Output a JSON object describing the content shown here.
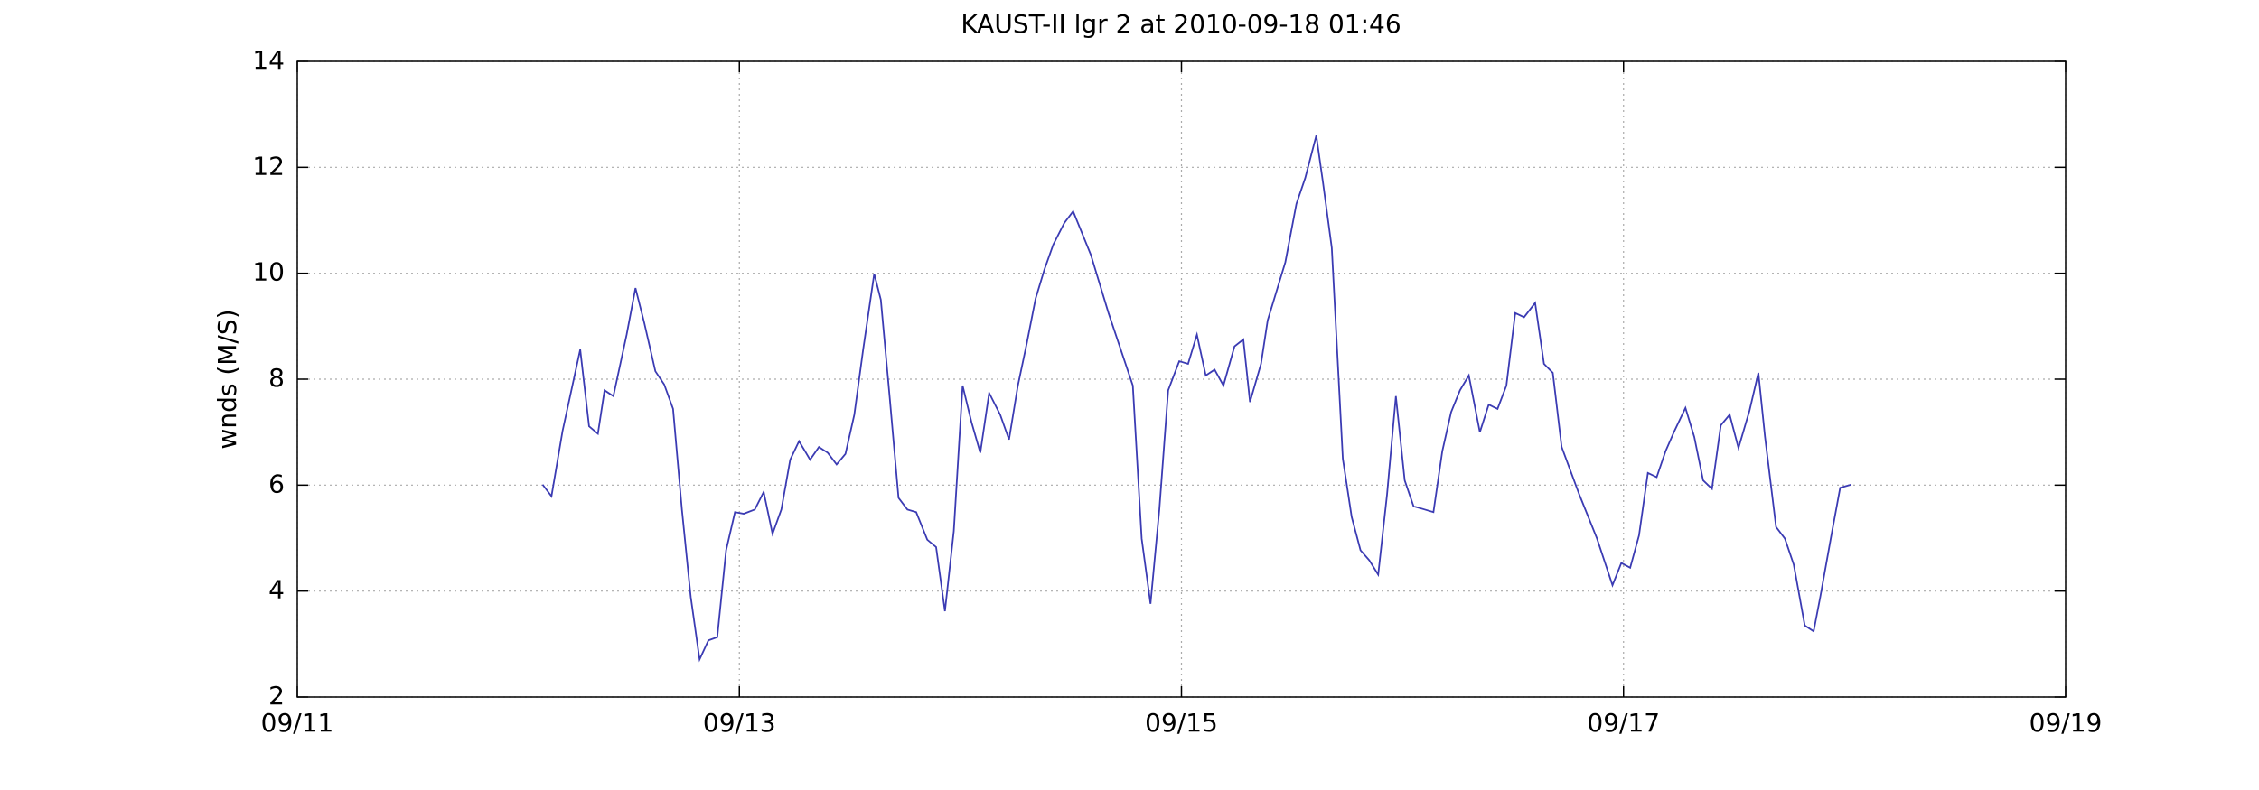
{
  "chart_data": {
    "type": "line",
    "title": "KAUST-II lgr 2 at 2010-09-18 01:46",
    "y_label": "wnds (M/S)",
    "xlim": [
      11,
      19
    ],
    "xticks": [
      {
        "value": 11,
        "label": "09/11"
      },
      {
        "value": 13,
        "label": "09/13"
      },
      {
        "value": 15,
        "label": "09/15"
      },
      {
        "value": 17,
        "label": "09/17"
      },
      {
        "value": 19,
        "label": "09/19"
      }
    ],
    "ylim": [
      2,
      14
    ],
    "yticks": [
      2,
      4,
      6,
      8,
      10,
      12,
      14
    ],
    "grid": true,
    "x": [
      12.11,
      12.15,
      12.2,
      12.28,
      12.32,
      12.36,
      12.39,
      12.43,
      12.49,
      12.53,
      12.57,
      12.62,
      12.66,
      12.7,
      12.74,
      12.78,
      12.82,
      12.86,
      12.9,
      12.94,
      12.98,
      13.02,
      13.07,
      13.11,
      13.15,
      13.19,
      13.23,
      13.27,
      13.32,
      13.36,
      13.4,
      13.44,
      13.48,
      13.52,
      13.56,
      13.61,
      13.64,
      13.68,
      13.72,
      13.76,
      13.8,
      13.85,
      13.89,
      13.93,
      13.97,
      14.01,
      14.05,
      14.09,
      14.13,
      14.18,
      14.22,
      14.26,
      14.3,
      14.34,
      14.38,
      14.42,
      14.47,
      14.51,
      14.59,
      14.67,
      14.78,
      14.82,
      14.86,
      14.9,
      14.94,
      14.99,
      15.03,
      15.07,
      15.11,
      15.15,
      15.19,
      15.24,
      15.28,
      15.31,
      15.36,
      15.39,
      15.43,
      15.47,
      15.52,
      15.56,
      15.61,
      15.64,
      15.68,
      15.73,
      15.77,
      15.81,
      15.85,
      15.89,
      15.93,
      15.97,
      16.01,
      16.05,
      16.1,
      16.14,
      16.18,
      16.22,
      16.26,
      16.3,
      16.35,
      16.39,
      16.43,
      16.47,
      16.51,
      16.55,
      16.6,
      16.64,
      16.68,
      16.72,
      16.8,
      16.88,
      16.95,
      16.99,
      17.03,
      17.07,
      17.11,
      17.15,
      17.19,
      17.23,
      17.28,
      17.32,
      17.36,
      17.4,
      17.44,
      17.48,
      17.52,
      17.57,
      17.61,
      17.64,
      17.69,
      17.73,
      17.77,
      17.82,
      17.86,
      17.89,
      17.94,
      17.98,
      18.03
    ],
    "series": [
      {
        "color": "#3b3bb3",
        "values": [
          6.01,
          5.79,
          7.02,
          8.56,
          7.11,
          6.97,
          7.79,
          7.68,
          8.84,
          9.72,
          9.06,
          8.15,
          7.9,
          7.44,
          5.54,
          3.89,
          2.71,
          3.07,
          3.13,
          4.77,
          5.49,
          5.46,
          5.54,
          5.87,
          5.08,
          5.54,
          6.48,
          6.83,
          6.48,
          6.72,
          6.61,
          6.39,
          6.59,
          7.33,
          8.56,
          9.99,
          9.5,
          7.66,
          5.76,
          5.54,
          5.49,
          4.97,
          4.83,
          3.62,
          5.13,
          7.88,
          7.19,
          6.61,
          7.74,
          7.33,
          6.86,
          7.88,
          8.67,
          9.52,
          10.07,
          10.54,
          10.95,
          11.17,
          10.35,
          9.25,
          7.88,
          4.99,
          3.76,
          5.54,
          7.79,
          8.34,
          8.29,
          8.84,
          8.07,
          8.18,
          7.88,
          8.62,
          8.75,
          7.57,
          8.29,
          9.11,
          9.66,
          10.21,
          11.31,
          11.8,
          12.6,
          11.72,
          10.48,
          6.5,
          5.4,
          4.77,
          4.58,
          4.31,
          5.82,
          7.68,
          6.09,
          5.6,
          5.54,
          5.49,
          6.64,
          7.38,
          7.79,
          8.07,
          7.0,
          7.52,
          7.44,
          7.88,
          9.25,
          9.17,
          9.44,
          8.29,
          8.12,
          6.72,
          5.82,
          4.99,
          4.11,
          4.53,
          4.44,
          5.05,
          6.23,
          6.15,
          6.64,
          7.02,
          7.46,
          6.91,
          6.09,
          5.93,
          7.13,
          7.33,
          6.7,
          7.41,
          8.12,
          6.91,
          5.21,
          4.99,
          4.5,
          3.35,
          3.24,
          3.89,
          5.05,
          5.95,
          6.01
        ]
      }
    ]
  }
}
